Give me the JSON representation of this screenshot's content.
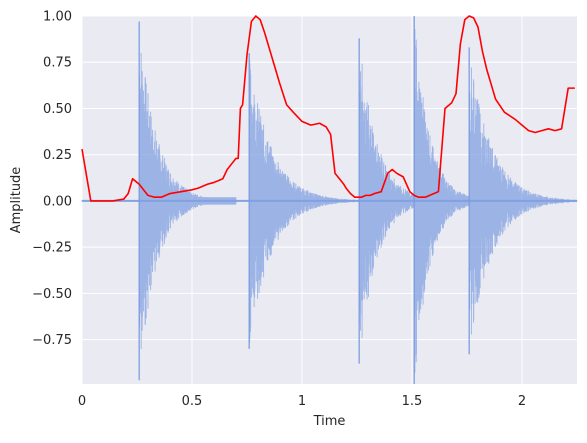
{
  "chart_data": {
    "type": "line",
    "title": "",
    "xlabel": "Time",
    "ylabel": "Amplitude",
    "xlim": [
      0,
      2.25
    ],
    "ylim": [
      -0.99,
      1.0
    ],
    "grid": true,
    "style": "seaborn-darkgrid",
    "xticks": [
      0,
      0.5,
      1,
      1.5,
      2
    ],
    "xtick_labels": [
      "0",
      "0.5",
      "1",
      "1.5",
      "2"
    ],
    "yticks": [
      1.0,
      0.75,
      0.5,
      0.25,
      0.0,
      -0.25,
      -0.5,
      -0.75
    ],
    "ytick_labels": [
      "1.00",
      "0.75",
      "0.50",
      "0.25",
      "0.00",
      "−0.25",
      "−0.50",
      "−0.75"
    ],
    "series": [
      {
        "kind": "waveform",
        "color": "#7b9be0",
        "onsets": [
          {
            "t": 0.26,
            "max_pos": 0.97,
            "max_neg": -0.97,
            "decay": 0.08
          },
          {
            "t": 0.76,
            "max_pos": 0.8,
            "max_neg": -0.8,
            "decay": 0.1
          },
          {
            "t": 1.26,
            "max_pos": 0.88,
            "max_neg": -0.88,
            "decay": 0.08
          },
          {
            "t": 1.51,
            "max_pos": 1.0,
            "max_neg": -0.99,
            "decay": 0.07
          },
          {
            "t": 1.76,
            "max_pos": 0.83,
            "max_neg": -0.83,
            "decay": 0.1
          }
        ],
        "baseline_oscillation": [
          {
            "from": 0.3,
            "to": 0.7,
            "amplitude": 0.02
          },
          {
            "from": 1.55,
            "to": 1.74,
            "amplitude": 0.02
          }
        ]
      },
      {
        "kind": "line",
        "color": "#ff0000",
        "x": [
          0,
          0.04,
          0.08,
          0.14,
          0.19,
          0.21,
          0.23,
          0.26,
          0.28,
          0.3,
          0.33,
          0.36,
          0.4,
          0.45,
          0.5,
          0.53,
          0.57,
          0.6,
          0.62,
          0.64,
          0.66,
          0.68,
          0.7,
          0.71,
          0.72,
          0.73,
          0.75,
          0.77,
          0.79,
          0.81,
          0.83,
          0.86,
          0.88,
          0.9,
          0.93,
          0.96,
          1.0,
          1.04,
          1.08,
          1.11,
          1.13,
          1.15,
          1.17,
          1.19,
          1.2,
          1.22,
          1.24,
          1.27,
          1.29,
          1.31,
          1.33,
          1.36,
          1.39,
          1.41,
          1.43,
          1.46,
          1.49,
          1.51,
          1.53,
          1.56,
          1.58,
          1.6,
          1.62,
          1.65,
          1.68,
          1.7,
          1.72,
          1.74,
          1.76,
          1.78,
          1.8,
          1.82,
          1.84,
          1.86,
          1.88,
          1.92,
          1.97,
          2.0,
          2.03,
          2.06,
          2.09,
          2.12,
          2.15,
          2.18,
          2.21,
          2.24
        ],
        "y": [
          0.28,
          0.0,
          0.0,
          0.0,
          0.01,
          0.04,
          0.12,
          0.09,
          0.06,
          0.03,
          0.02,
          0.02,
          0.04,
          0.05,
          0.06,
          0.07,
          0.09,
          0.1,
          0.11,
          0.12,
          0.17,
          0.2,
          0.23,
          0.23,
          0.5,
          0.52,
          0.79,
          0.97,
          1.0,
          0.98,
          0.91,
          0.79,
          0.71,
          0.63,
          0.52,
          0.48,
          0.43,
          0.41,
          0.42,
          0.4,
          0.36,
          0.15,
          0.12,
          0.09,
          0.07,
          0.04,
          0.02,
          0.02,
          0.03,
          0.03,
          0.04,
          0.05,
          0.15,
          0.17,
          0.15,
          0.13,
          0.05,
          0.03,
          0.02,
          0.02,
          0.03,
          0.04,
          0.05,
          0.5,
          0.53,
          0.58,
          0.85,
          0.98,
          1.0,
          0.99,
          0.94,
          0.81,
          0.71,
          0.63,
          0.55,
          0.48,
          0.44,
          0.41,
          0.38,
          0.37,
          0.38,
          0.39,
          0.38,
          0.39,
          0.61,
          0.61
        ]
      }
    ]
  }
}
